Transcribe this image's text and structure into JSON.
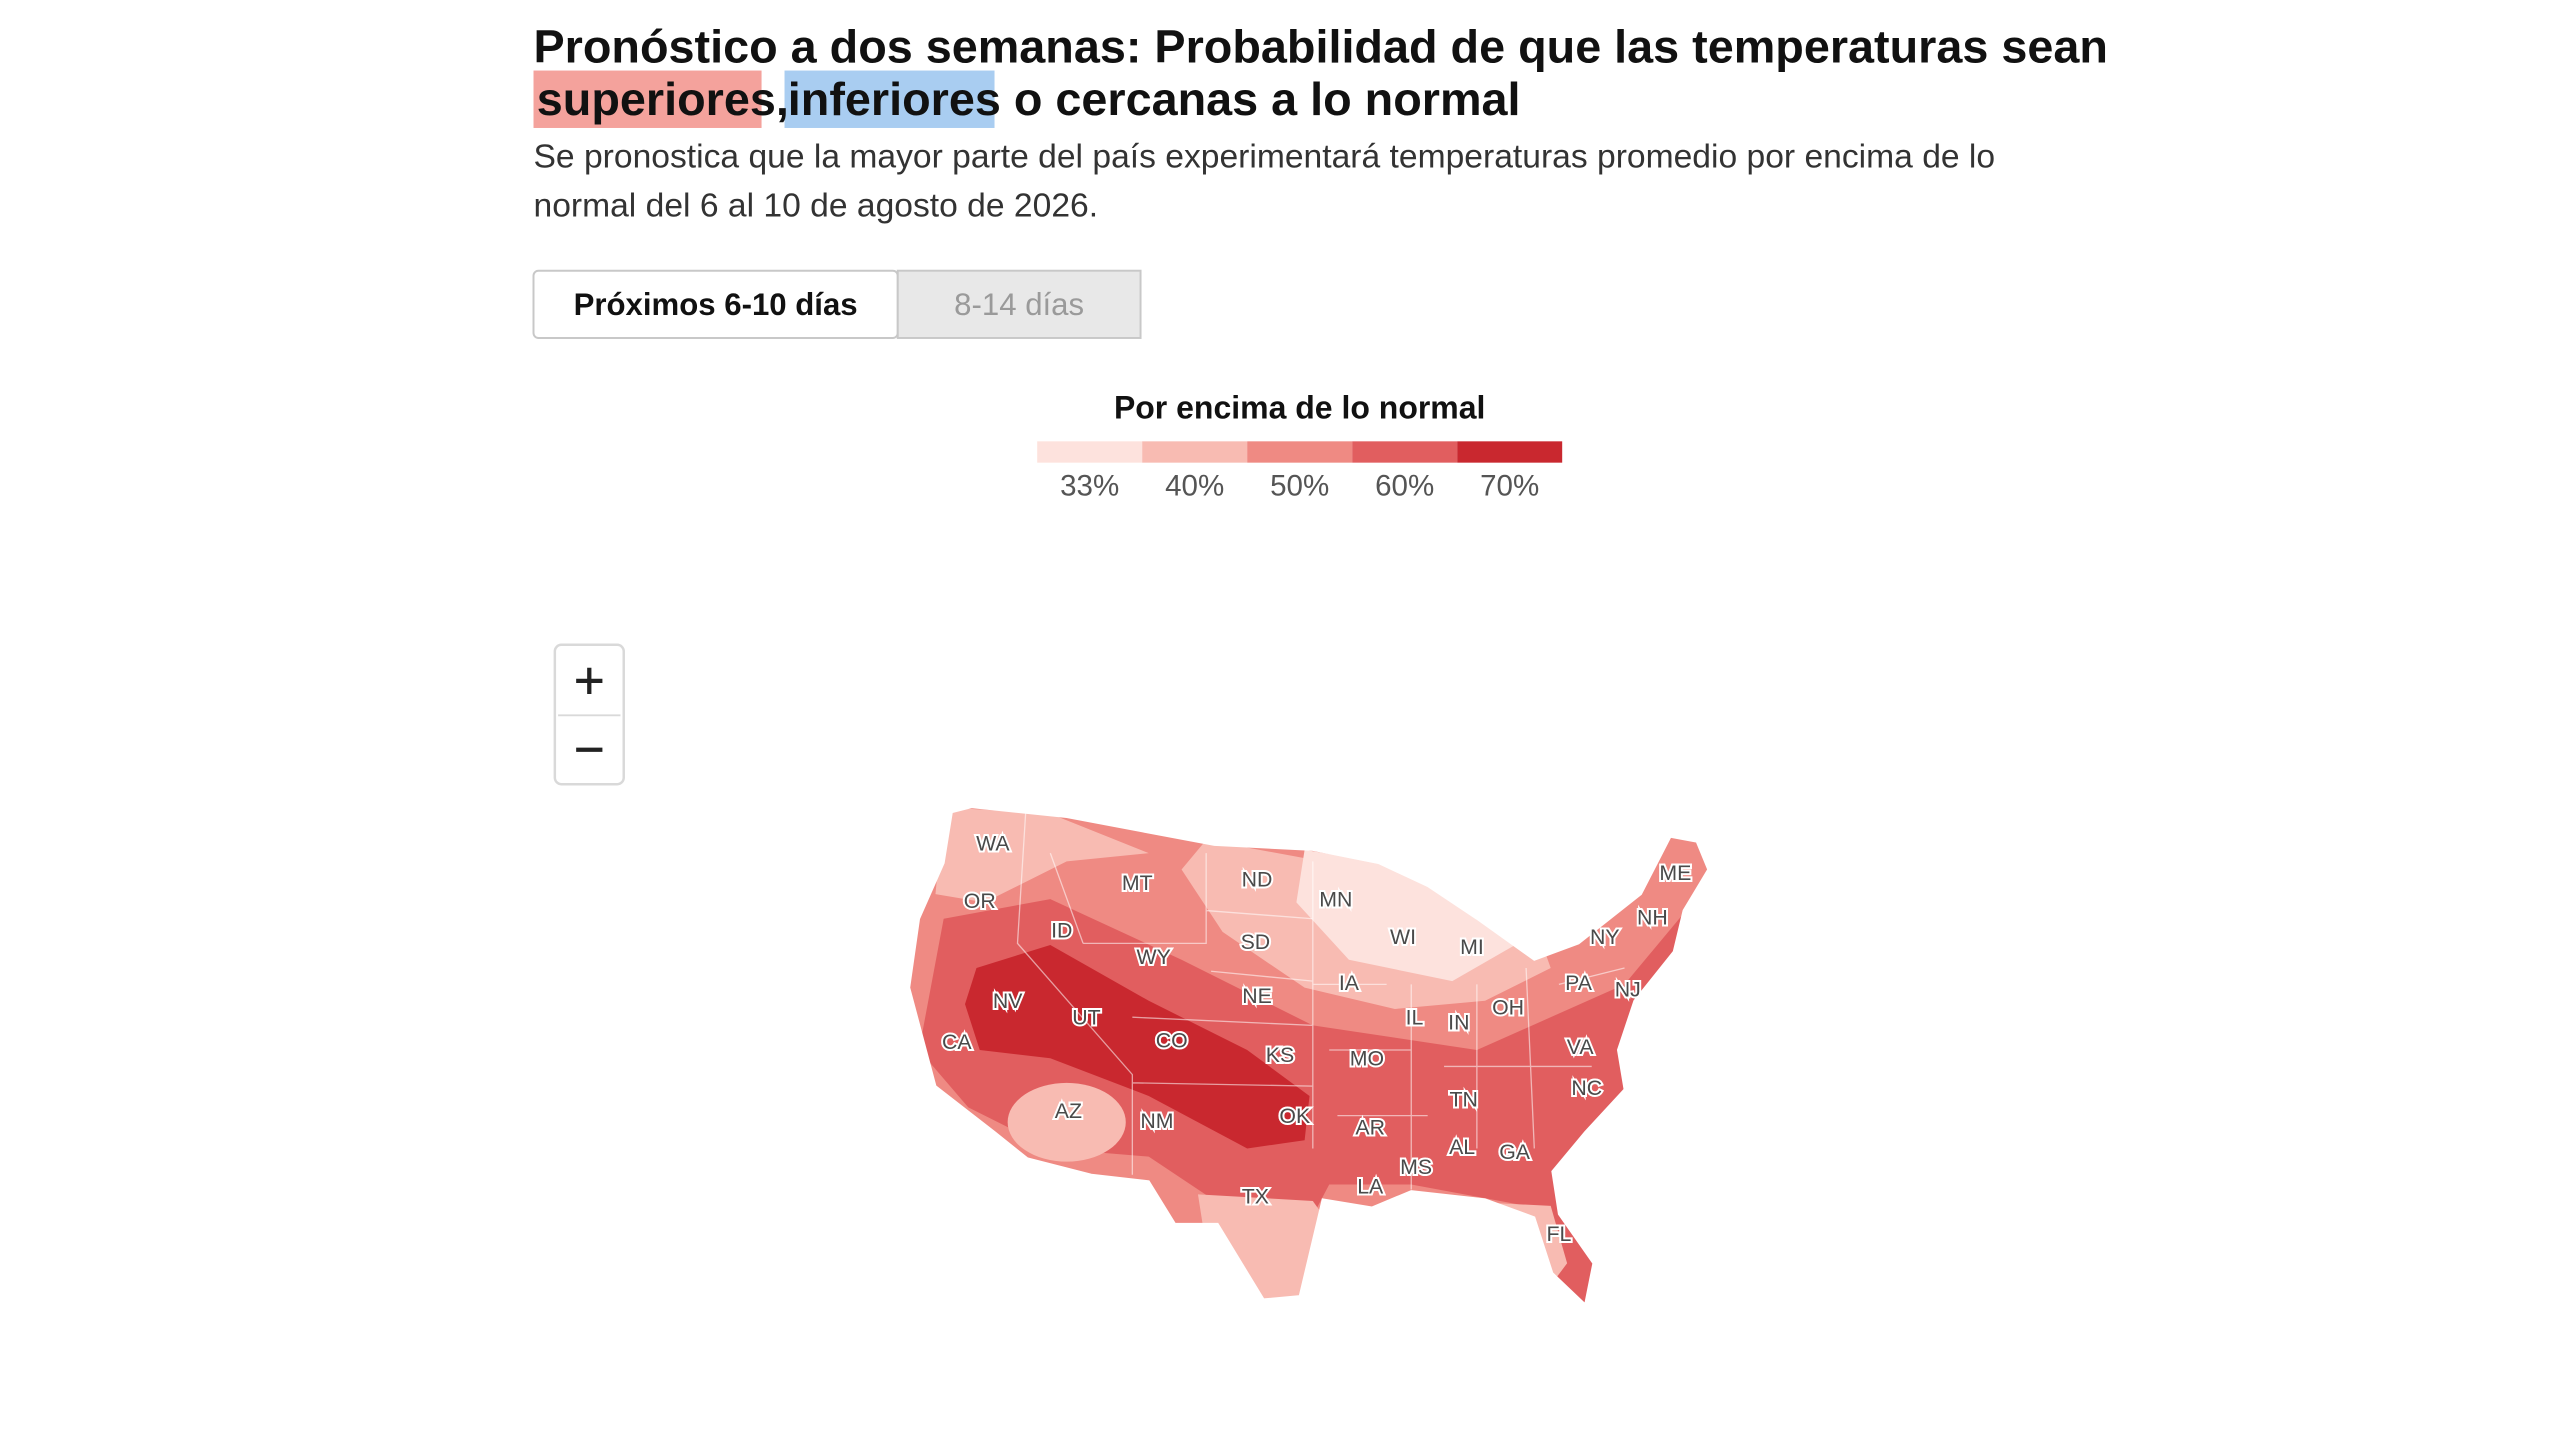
{
  "header": {
    "title_line1": "Pronóstico a dos semanas: Probabilidad de que las temperaturas sean",
    "highlight_above": "superiores",
    "separator": ",",
    "highlight_below": "inferiores",
    "title_rest": "o cercanas a lo normal",
    "subtitle_line1": "Se pronostica que la mayor parte del país experimentará temperaturas promedio por encima de lo",
    "subtitle_line2": "normal del 6 al 10 de agosto de 2026."
  },
  "tabs": [
    {
      "label": "Próximos 6-10 días",
      "active": true
    },
    {
      "label": "8-14 días",
      "active": false
    }
  ],
  "legend": {
    "title": "Por encima de lo normal",
    "items": [
      {
        "label": "33%",
        "color": "#fde2dd"
      },
      {
        "label": "40%",
        "color": "#f8bbb2"
      },
      {
        "label": "50%",
        "color": "#ef8a83"
      },
      {
        "label": "60%",
        "color": "#e15e5f"
      },
      {
        "label": "70%",
        "color": "#c9282f"
      }
    ]
  },
  "map": {
    "states": [
      "WA",
      "OR",
      "ID",
      "MT",
      "WY",
      "NV",
      "UT",
      "CO",
      "CA",
      "AZ",
      "NM",
      "ND",
      "SD",
      "NE",
      "KS",
      "OK",
      "TX",
      "MN",
      "IA",
      "MO",
      "AR",
      "LA",
      "WI",
      "MI",
      "IL",
      "IN",
      "OH",
      "TN",
      "MS",
      "AL",
      "GA",
      "FL",
      "PA",
      "NY",
      "NJ",
      "VA",
      "NC",
      "ME",
      "NH"
    ]
  }
}
